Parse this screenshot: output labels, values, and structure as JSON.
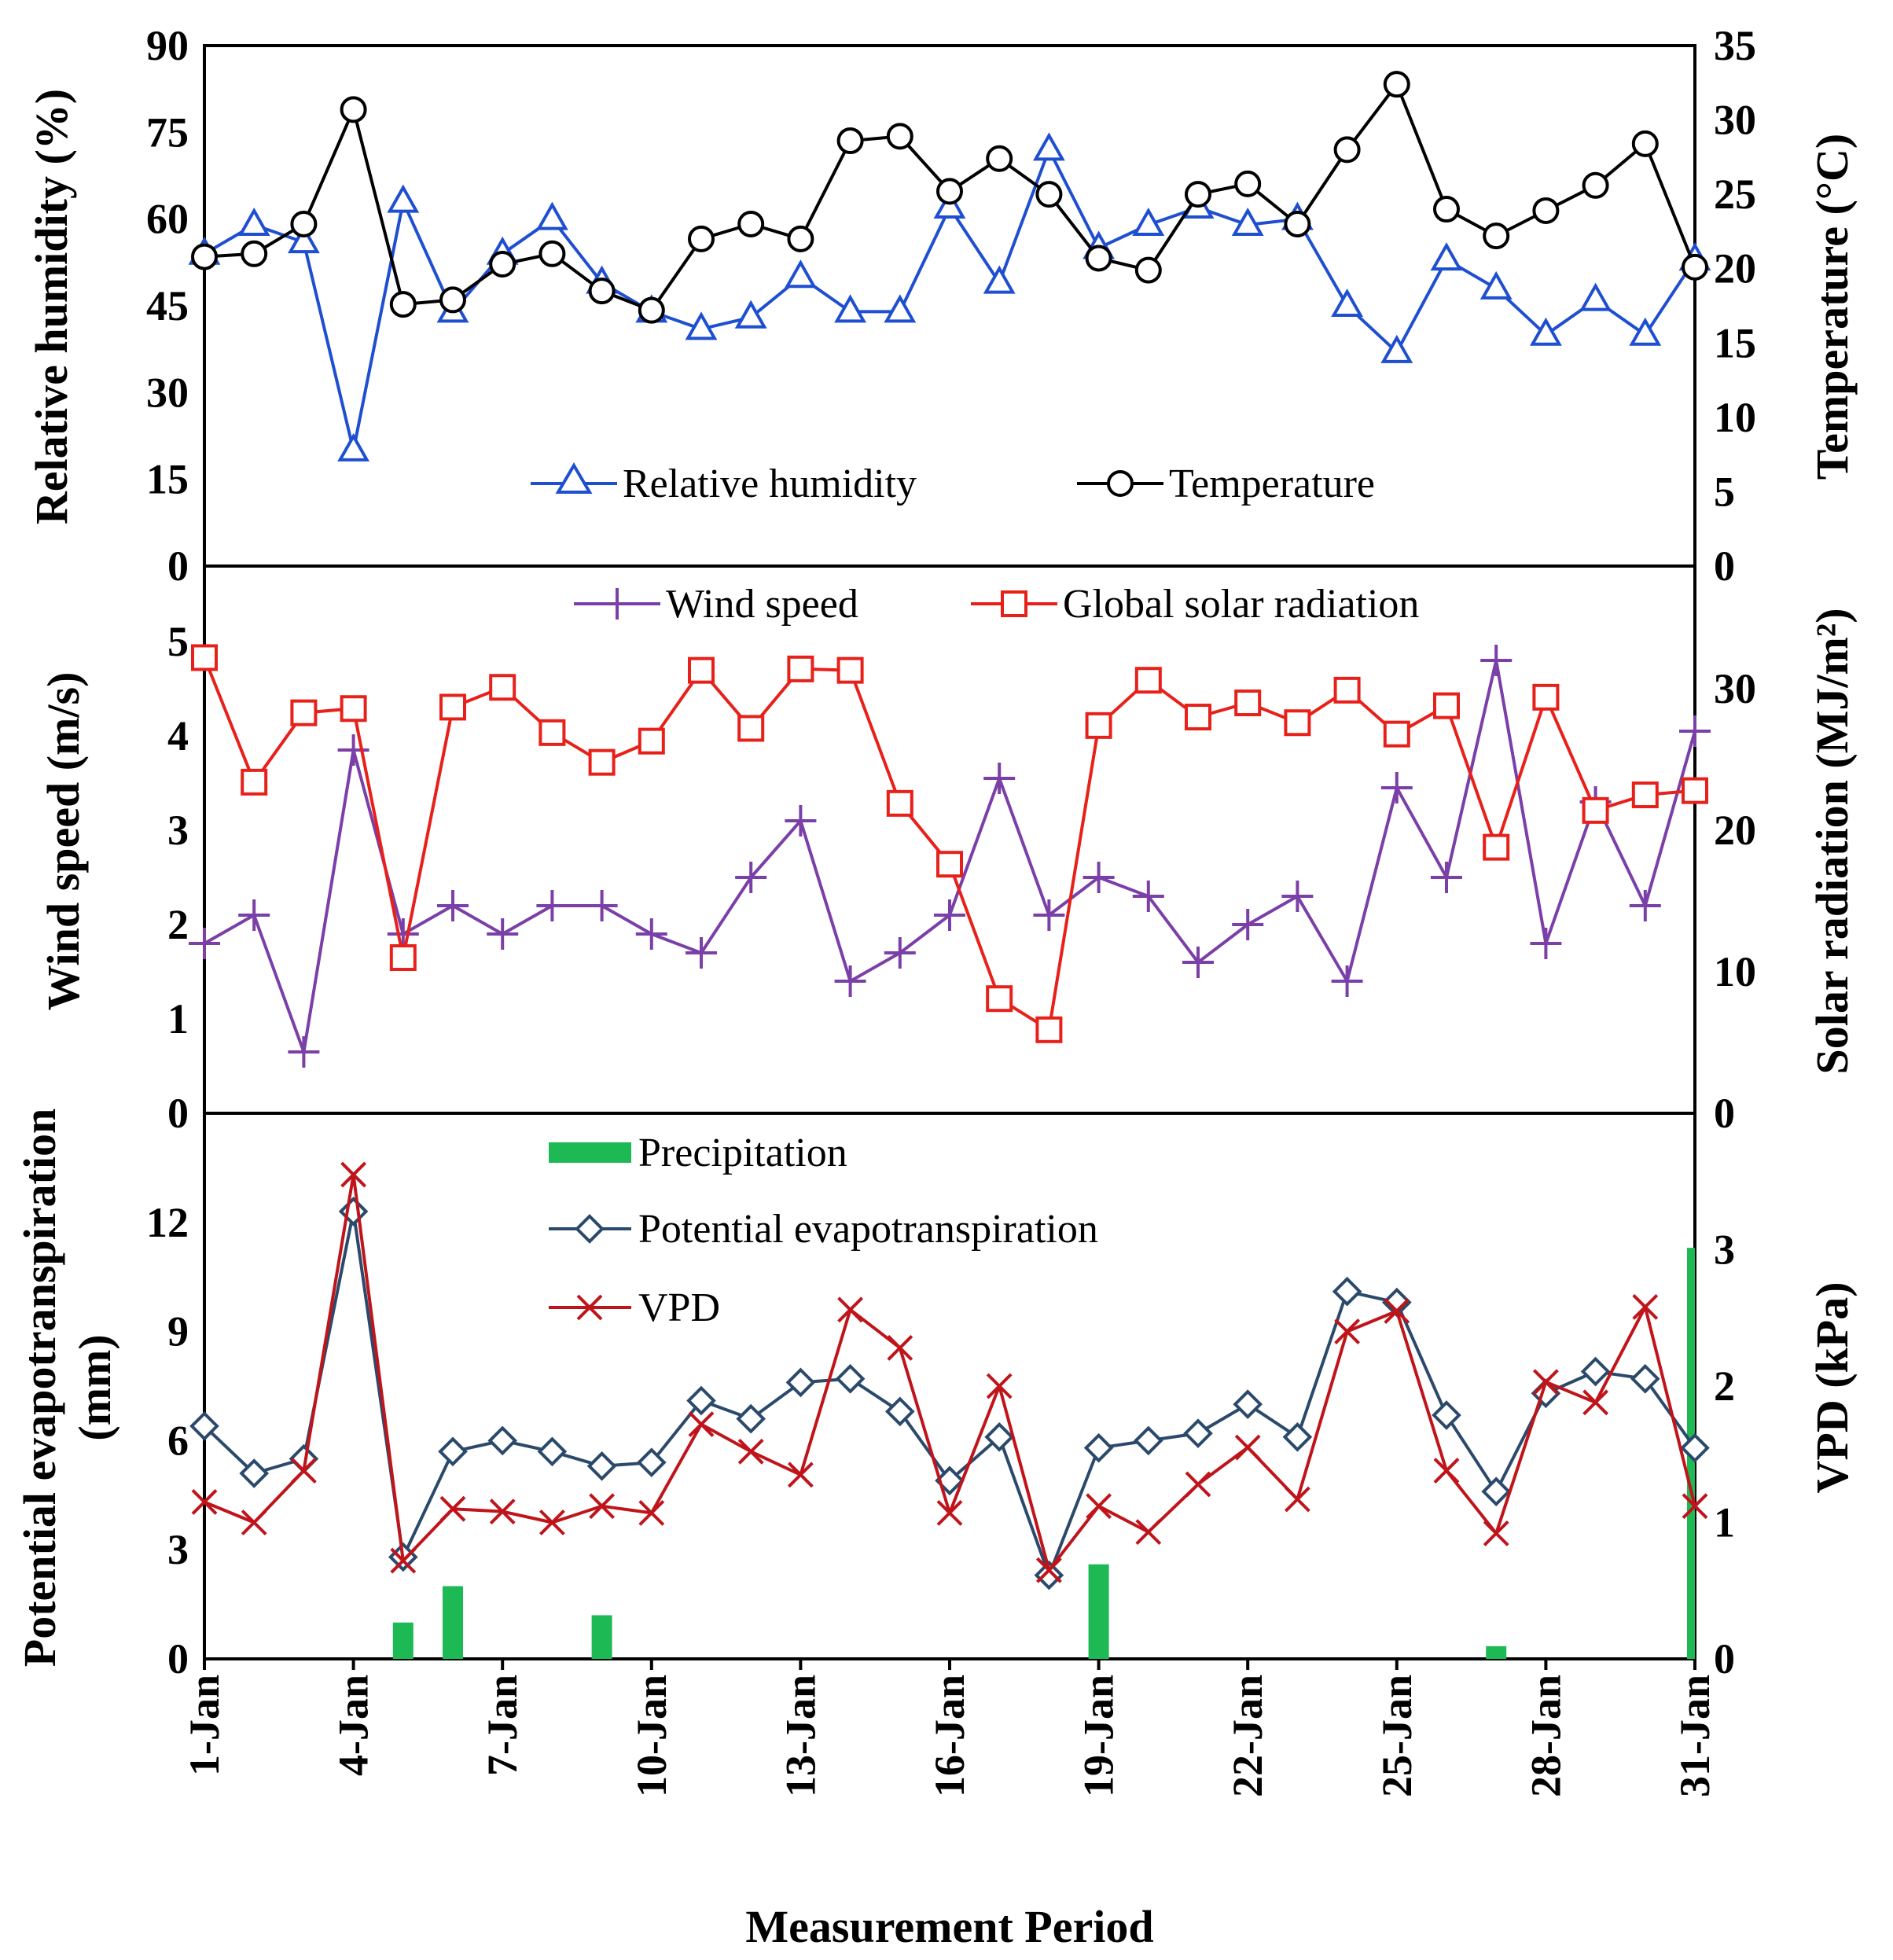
{
  "chart_data": [
    {
      "type": "line",
      "panel": "top",
      "categories": [
        "1-Jan",
        "2-Jan",
        "3-Jan",
        "4-Jan",
        "5-Jan",
        "6-Jan",
        "7-Jan",
        "8-Jan",
        "9-Jan",
        "10-Jan",
        "11-Jan",
        "12-Jan",
        "13-Jan",
        "14-Jan",
        "15-Jan",
        "16-Jan",
        "17-Jan",
        "18-Jan",
        "19-Jan",
        "20-Jan",
        "21-Jan",
        "22-Jan",
        "23-Jan",
        "24-Jan",
        "25-Jan",
        "26-Jan",
        "27-Jan",
        "28-Jan",
        "29-Jan",
        "30-Jan",
        "31-Jan"
      ],
      "ylabel_left": "Relative humidity (%)",
      "ylabel_right": "Temperature (°C)",
      "ylim_left": [
        0,
        90
      ],
      "ylim_right": [
        0,
        35
      ],
      "yticks_left": [
        "0",
        "15",
        "30",
        "45",
        "60",
        "75",
        "90"
      ],
      "yticks_right": [
        "0",
        "5",
        "10",
        "15",
        "20",
        "25",
        "30",
        "35"
      ],
      "series": [
        {
          "name": "Relative humidity",
          "axis": "left",
          "color": "#1f4fd1",
          "marker": "triangle",
          "values": [
            54,
            59,
            56,
            20,
            63,
            44,
            54,
            60,
            49,
            44,
            41,
            43,
            50,
            44,
            44,
            62,
            49,
            72,
            55,
            59,
            62,
            59,
            60,
            45,
            37,
            53,
            48,
            40,
            46,
            40,
            53
          ]
        },
        {
          "name": "Temperature",
          "axis": "right",
          "color": "#000000",
          "marker": "circle",
          "values": [
            20.8,
            21,
            23,
            30.7,
            17.6,
            17.9,
            20.3,
            21,
            18.5,
            17.2,
            22,
            23,
            22,
            28.6,
            28.9,
            25.2,
            27.4,
            25,
            20.7,
            19.9,
            25,
            25.7,
            23,
            28,
            32.4,
            24,
            22.2,
            23.9,
            25.6,
            28.4,
            20.1
          ]
        }
      ]
    },
    {
      "type": "line",
      "panel": "middle",
      "ylabel_left": "Wind speed (m/s)",
      "ylabel_right": "Solar radiation (MJ/m²)",
      "ylim_left": [
        0,
        5.8
      ],
      "ylim_right": [
        0,
        38.67
      ],
      "yticks_left": [
        "0",
        "1",
        "2",
        "3",
        "4",
        "5"
      ],
      "yticks_right": [
        "0",
        "10",
        "20",
        "30"
      ],
      "series": [
        {
          "name": "Wind speed",
          "axis": "left",
          "color": "#7b3fa8",
          "marker": "plus",
          "values": [
            1.8,
            2.1,
            0.65,
            3.85,
            1.9,
            2.2,
            1.9,
            2.2,
            2.2,
            1.9,
            1.7,
            2.5,
            3.1,
            1.4,
            1.7,
            2.1,
            3.55,
            2.1,
            2.5,
            2.3,
            1.6,
            2.0,
            2.3,
            1.4,
            3.45,
            2.5,
            4.8,
            1.8,
            3.3,
            2.2,
            4.05
          ]
        },
        {
          "name": "Global solar radiation",
          "axis": "right",
          "color": "#e8201a",
          "marker": "square",
          "values": [
            32.2,
            23.4,
            28.3,
            28.6,
            11,
            28.7,
            30.1,
            26.9,
            24.8,
            26.3,
            31.3,
            27.2,
            31.4,
            31.3,
            21.9,
            17.6,
            8.1,
            5.9,
            27.4,
            30.6,
            28,
            29,
            27.6,
            29.9,
            26.8,
            28.8,
            18.8,
            29.4,
            21.4,
            22.5,
            22.8
          ]
        }
      ]
    },
    {
      "type": "line",
      "panel": "bottom",
      "xlabel": "Measurement Period",
      "xticks": [
        "1-Jan",
        "4-Jan",
        "7-Jan",
        "10-Jan",
        "13-Jan",
        "16-Jan",
        "19-Jan",
        "22-Jan",
        "25-Jan",
        "28-Jan",
        "31-Jan"
      ],
      "ylabel_left_line1": "Potential evapotranspiration",
      "ylabel_left_line2": "(mm)",
      "ylabel_right": "VPD (kPa)",
      "ylim_left": [
        0,
        15
      ],
      "ylim_right": [
        0,
        4
      ],
      "yticks_left": [
        "0",
        "3",
        "6",
        "9",
        "12"
      ],
      "yticks_right": [
        "0",
        "1",
        "2",
        "3"
      ],
      "series": [
        {
          "name": "Precipitation",
          "axis": "left",
          "color": "#1db954",
          "marker": "bar",
          "values": [
            0,
            0,
            0,
            0,
            1.0,
            2.0,
            0,
            0,
            1.2,
            0,
            0,
            0,
            0,
            0,
            0,
            0,
            0,
            0,
            2.6,
            0,
            0,
            0,
            0,
            0,
            0,
            0,
            0.35,
            0,
            0,
            0,
            11.3
          ]
        },
        {
          "name": "Potential evapotranspiration",
          "axis": "left",
          "color": "#2b4a6b",
          "marker": "diamond",
          "values": [
            6.4,
            5.1,
            5.5,
            12.3,
            2.8,
            5.7,
            6.0,
            5.7,
            5.3,
            5.4,
            7.1,
            6.6,
            7.6,
            7.7,
            6.8,
            4.9,
            6.1,
            2.3,
            5.8,
            6.0,
            6.2,
            7.0,
            6.1,
            10.1,
            9.8,
            6.7,
            4.6,
            7.3,
            7.9,
            7.7,
            5.8
          ]
        },
        {
          "name": "VPD",
          "axis": "right",
          "color": "#c0141b",
          "marker": "x",
          "values": [
            1.15,
            1.0,
            1.38,
            3.55,
            0.72,
            1.1,
            1.08,
            1.0,
            1.12,
            1.07,
            1.72,
            1.52,
            1.35,
            2.56,
            2.28,
            1.07,
            2.0,
            0.65,
            1.12,
            0.93,
            1.28,
            1.55,
            1.17,
            2.4,
            2.55,
            1.38,
            0.92,
            2.03,
            1.88,
            2.58,
            1.12
          ]
        }
      ]
    }
  ]
}
